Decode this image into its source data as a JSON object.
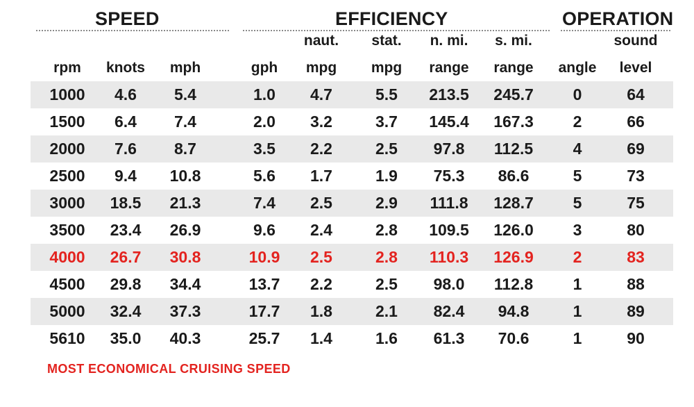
{
  "groups": {
    "speed": "SPEED",
    "efficiency": "EFFICIENCY",
    "operation": "OPERATION"
  },
  "columns": [
    {
      "line1": "",
      "line2": "rpm"
    },
    {
      "line1": "",
      "line2": "knots"
    },
    {
      "line1": "",
      "line2": "mph"
    },
    {
      "line1": "",
      "line2": "gph"
    },
    {
      "line1": "naut.",
      "line2": "mpg"
    },
    {
      "line1": "stat.",
      "line2": "mpg"
    },
    {
      "line1": "n. mi.",
      "line2": "range"
    },
    {
      "line1": "s. mi.",
      "line2": "range"
    },
    {
      "line1": "",
      "line2": "angle"
    },
    {
      "line1": "sound",
      "line2": "level"
    }
  ],
  "rows": [
    [
      "1000",
      "4.6",
      "5.4",
      "1.0",
      "4.7",
      "5.5",
      "213.5",
      "245.7",
      "0",
      "64"
    ],
    [
      "1500",
      "6.4",
      "7.4",
      "2.0",
      "3.2",
      "3.7",
      "145.4",
      "167.3",
      "2",
      "66"
    ],
    [
      "2000",
      "7.6",
      "8.7",
      "3.5",
      "2.2",
      "2.5",
      "97.8",
      "112.5",
      "4",
      "69"
    ],
    [
      "2500",
      "9.4",
      "10.8",
      "5.6",
      "1.7",
      "1.9",
      "75.3",
      "86.6",
      "5",
      "73"
    ],
    [
      "3000",
      "18.5",
      "21.3",
      "7.4",
      "2.5",
      "2.9",
      "111.8",
      "128.7",
      "5",
      "75"
    ],
    [
      "3500",
      "23.4",
      "26.9",
      "9.6",
      "2.4",
      "2.8",
      "109.5",
      "126.0",
      "3",
      "80"
    ],
    [
      "4000",
      "26.7",
      "30.8",
      "10.9",
      "2.5",
      "2.8",
      "110.3",
      "126.9",
      "2",
      "83"
    ],
    [
      "4500",
      "29.8",
      "34.4",
      "13.7",
      "2.2",
      "2.5",
      "98.0",
      "112.8",
      "1",
      "88"
    ],
    [
      "5000",
      "32.4",
      "37.3",
      "17.7",
      "1.8",
      "2.1",
      "82.4",
      "94.8",
      "1",
      "89"
    ],
    [
      "5610",
      "35.0",
      "40.3",
      "25.7",
      "1.4",
      "1.6",
      "61.3",
      "70.6",
      "1",
      "90"
    ]
  ],
  "highlight_row_rpm": "4000",
  "footnote": "MOST ECONOMICAL CRUISING SPEED",
  "colors": {
    "highlight": "#e3231f",
    "row_shade": "#e9e9e9",
    "text": "#1a1a1a",
    "rule": "#8a8a8a"
  }
}
